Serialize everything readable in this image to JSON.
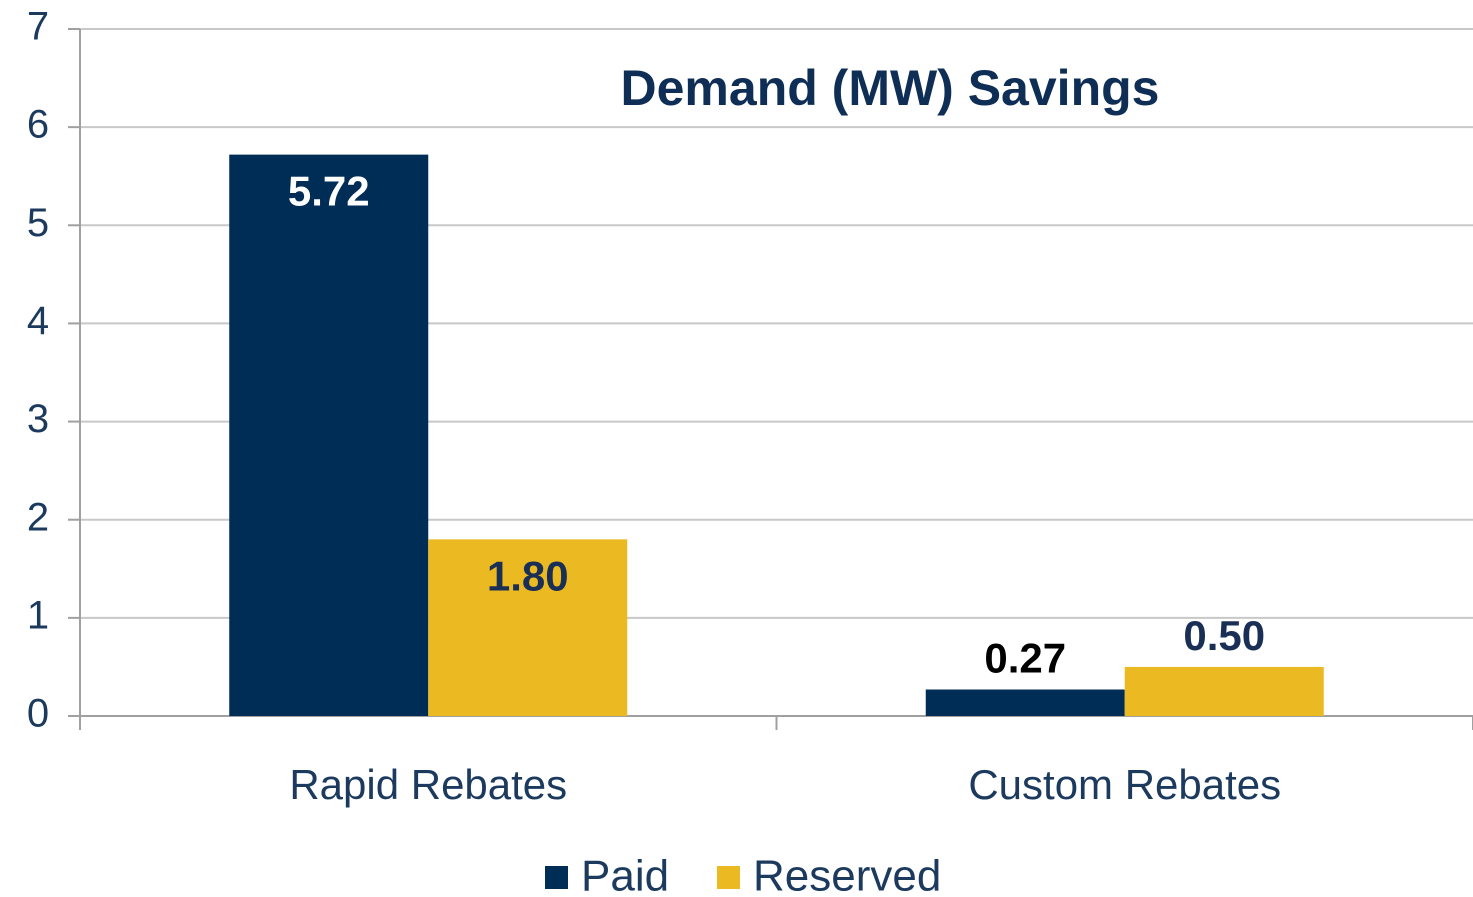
{
  "chart_data": {
    "type": "bar",
    "title": "Demand (MW) Savings",
    "categories": [
      "Rapid Rebates",
      "Custom Rebates"
    ],
    "series": [
      {
        "name": "Paid",
        "color": "#002d56",
        "values": [
          5.72,
          0.27
        ],
        "value_labels": [
          "5.72",
          "0.27"
        ]
      },
      {
        "name": "Reserved",
        "color": "#ebba22",
        "values": [
          1.8,
          0.5
        ],
        "value_labels": [
          "1.80",
          "0.50"
        ]
      }
    ],
    "ylim": [
      0,
      7
    ],
    "yticks": [
      0,
      1,
      2,
      3,
      4,
      5,
      6,
      7
    ],
    "grid": true,
    "legend": "bottom"
  }
}
